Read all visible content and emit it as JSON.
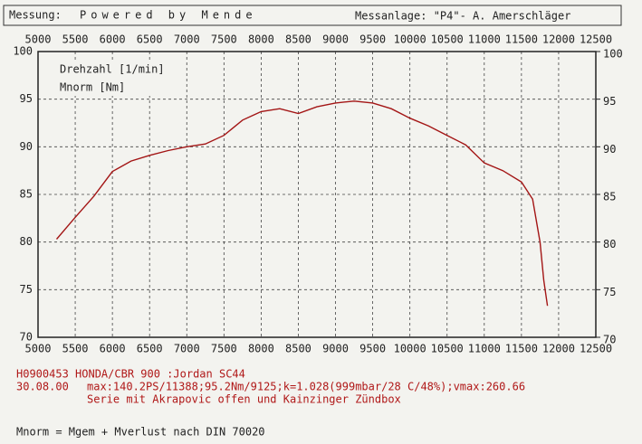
{
  "header": {
    "label": "Messung:",
    "title": "Powered by Mende",
    "right": "Messanlage: \"P4\"- A. Amerschläger"
  },
  "chart_data": {
    "type": "line",
    "x_label": "Drehzahl [1/min]",
    "x": [
      5250,
      5500,
      5750,
      6000,
      6250,
      6500,
      6750,
      7000,
      7250,
      7500,
      7750,
      8000,
      8250,
      8500,
      8750,
      9000,
      9250,
      9500,
      9750,
      10000,
      10250,
      10500,
      10750,
      11000,
      11250,
      11500,
      11650,
      11750,
      11800,
      11850
    ],
    "series": [
      {
        "name": "Mnorm [Nm]",
        "color": "#a31515",
        "values": [
          80.3,
          82.6,
          84.8,
          87.4,
          88.5,
          89.1,
          89.6,
          90.0,
          90.3,
          91.2,
          92.8,
          93.7,
          94.0,
          93.5,
          94.2,
          94.6,
          94.8,
          94.6,
          94.0,
          93.0,
          92.2,
          91.2,
          90.2,
          88.3,
          87.5,
          86.3,
          84.5,
          80,
          76,
          73.3
        ]
      }
    ],
    "xlim": [
      5000,
      12500
    ],
    "xticks": [
      5000,
      5500,
      6000,
      6500,
      7000,
      7500,
      8000,
      8500,
      9000,
      9500,
      10000,
      10500,
      11000,
      11500,
      12000,
      12500
    ],
    "ylim": [
      70,
      100
    ],
    "yticks": [
      70,
      75,
      80,
      85,
      90,
      95,
      100
    ],
    "y2lim": [
      70,
      100
    ],
    "y2ticks": [
      70,
      75,
      80,
      85,
      90,
      95,
      100
    ],
    "grid": true
  },
  "footer": {
    "lines_red": [
      "H0900453   HONDA/CBR 900 :Jordan SC44",
      "30.08.00",
      "max:140.2PS/11388;95.2Nm/9125;k=1.028(999mbar/28 C/48%);vmax:260.66",
      "Serie mit Akrapovic offen und Kainzinger Zündbox"
    ],
    "note": "Mnorm = Mgem + Mverlust nach DIN 70020"
  }
}
